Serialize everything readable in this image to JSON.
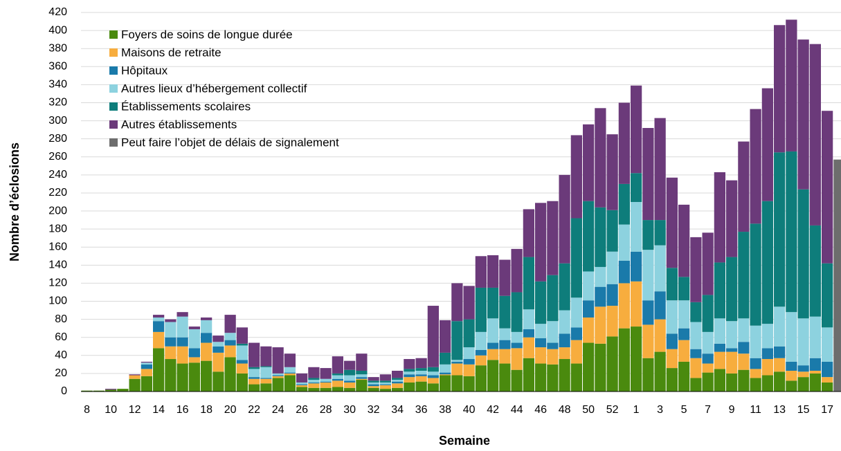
{
  "chart_data": {
    "type": "stacked_bar",
    "x_label": "Semaine",
    "y_label": "Nombre d’éclosions",
    "categories": [
      8,
      null,
      10,
      null,
      12,
      null,
      14,
      null,
      16,
      null,
      18,
      null,
      20,
      null,
      22,
      null,
      24,
      null,
      26,
      null,
      28,
      null,
      30,
      null,
      32,
      null,
      34,
      null,
      36,
      null,
      38,
      null,
      40,
      null,
      42,
      null,
      44,
      null,
      46,
      null,
      48,
      null,
      50,
      null,
      52,
      null,
      1,
      null,
      3,
      null,
      5,
      null,
      7,
      null,
      9,
      null,
      11,
      null,
      13,
      null,
      15,
      null,
      17,
      null
    ],
    "series": [
      {
        "name": "Foyers de soins de longue durée",
        "color": "#4a8a0e",
        "values": [
          1,
          1,
          2,
          3,
          14,
          17,
          48,
          36,
          31,
          32,
          34,
          22,
          38,
          20,
          8,
          9,
          15,
          18,
          5,
          4,
          4,
          5,
          4,
          13,
          4,
          3,
          4,
          10,
          11,
          9,
          18,
          18,
          17,
          29,
          35,
          31,
          24,
          37,
          31,
          30,
          36,
          31,
          54,
          53,
          61,
          70,
          72,
          37,
          44,
          26,
          33,
          15,
          21,
          25,
          20,
          24,
          15,
          18,
          22,
          12,
          16,
          20,
          10,
          null
        ]
      },
      {
        "name": "Maisons de retraite",
        "color": "#f7ad3e",
        "values": [
          0,
          0,
          0,
          0,
          4,
          8,
          18,
          14,
          19,
          6,
          20,
          21,
          13,
          11,
          6,
          5,
          2,
          2,
          2,
          5,
          6,
          7,
          6,
          1,
          2,
          4,
          5,
          6,
          6,
          6,
          1,
          13,
          13,
          11,
          12,
          16,
          24,
          23,
          18,
          17,
          13,
          26,
          28,
          41,
          34,
          50,
          50,
          37,
          36,
          21,
          24,
          22,
          10,
          19,
          24,
          18,
          10,
          18,
          15,
          11,
          6,
          3,
          6,
          null
        ]
      },
      {
        "name": "Hôpitaux",
        "color": "#1a7aaa",
        "values": [
          0,
          0,
          0,
          0,
          0,
          5,
          12,
          10,
          10,
          10,
          11,
          7,
          6,
          4,
          2,
          1,
          1,
          1,
          1,
          1,
          1,
          2,
          2,
          2,
          2,
          1,
          2,
          3,
          2,
          3,
          2,
          2,
          6,
          6,
          7,
          10,
          6,
          9,
          10,
          7,
          15,
          14,
          19,
          22,
          24,
          25,
          33,
          27,
          31,
          17,
          13,
          10,
          11,
          9,
          4,
          13,
          12,
          12,
          13,
          10,
          7,
          14,
          17,
          null
        ]
      },
      {
        "name": "Autres lieux d’hébergement collectif",
        "color": "#8dd2df",
        "values": [
          0,
          0,
          0,
          0,
          0,
          2,
          4,
          17,
          23,
          21,
          14,
          5,
          8,
          16,
          9,
          12,
          2,
          6,
          2,
          3,
          3,
          4,
          6,
          3,
          2,
          2,
          2,
          3,
          4,
          4,
          9,
          2,
          13,
          20,
          27,
          13,
          12,
          22,
          16,
          24,
          26,
          33,
          32,
          22,
          36,
          40,
          55,
          56,
          51,
          37,
          31,
          30,
          24,
          28,
          30,
          26,
          36,
          27,
          44,
          55,
          52,
          46,
          38,
          null
        ]
      },
      {
        "name": "Établissements scolaires",
        "color": "#0e7d7b",
        "values": [
          0,
          0,
          0,
          0,
          0,
          0,
          0,
          0,
          0,
          0,
          0,
          0,
          0,
          2,
          2,
          1,
          0,
          0,
          0,
          2,
          0,
          2,
          6,
          4,
          2,
          2,
          2,
          3,
          3,
          5,
          13,
          43,
          31,
          49,
          34,
          36,
          44,
          58,
          47,
          51,
          52,
          88,
          78,
          66,
          46,
          45,
          32,
          33,
          28,
          36,
          26,
          22,
          41,
          62,
          71,
          96,
          113,
          136,
          171,
          178,
          143,
          101,
          71,
          null
        ]
      },
      {
        "name": "Autres établissements",
        "color": "#6b3a7a",
        "values": [
          0,
          0,
          1,
          0,
          1,
          1,
          3,
          3,
          5,
          3,
          3,
          7,
          20,
          18,
          27,
          22,
          29,
          15,
          10,
          12,
          12,
          19,
          10,
          19,
          4,
          7,
          8,
          11,
          11,
          68,
          36,
          42,
          37,
          35,
          36,
          40,
          48,
          53,
          87,
          82,
          98,
          92,
          85,
          110,
          84,
          90,
          97,
          102,
          113,
          100,
          80,
          72,
          69,
          100,
          85,
          100,
          127,
          125,
          141,
          146,
          166,
          201,
          169,
          null
        ]
      },
      {
        "name": "Peut faire l’objet de délais de signalement",
        "color": "#6d6d6d",
        "values": [
          null,
          null,
          null,
          null,
          null,
          null,
          null,
          null,
          null,
          null,
          null,
          null,
          null,
          null,
          null,
          null,
          null,
          null,
          null,
          null,
          null,
          null,
          null,
          null,
          null,
          null,
          null,
          null,
          null,
          null,
          null,
          null,
          null,
          null,
          null,
          null,
          null,
          null,
          null,
          null,
          null,
          null,
          null,
          null,
          null,
          null,
          null,
          null,
          null,
          null,
          null,
          null,
          null,
          null,
          null,
          null,
          null,
          null,
          null,
          null,
          null,
          null,
          null,
          257
        ]
      }
    ],
    "ylim": [
      0,
      420
    ],
    "yticks": [
      0,
      20,
      40,
      60,
      80,
      100,
      120,
      140,
      160,
      180,
      200,
      220,
      240,
      260,
      280,
      300,
      320,
      340,
      360,
      380,
      400,
      420
    ],
    "grid": true,
    "legend": "upper left"
  }
}
